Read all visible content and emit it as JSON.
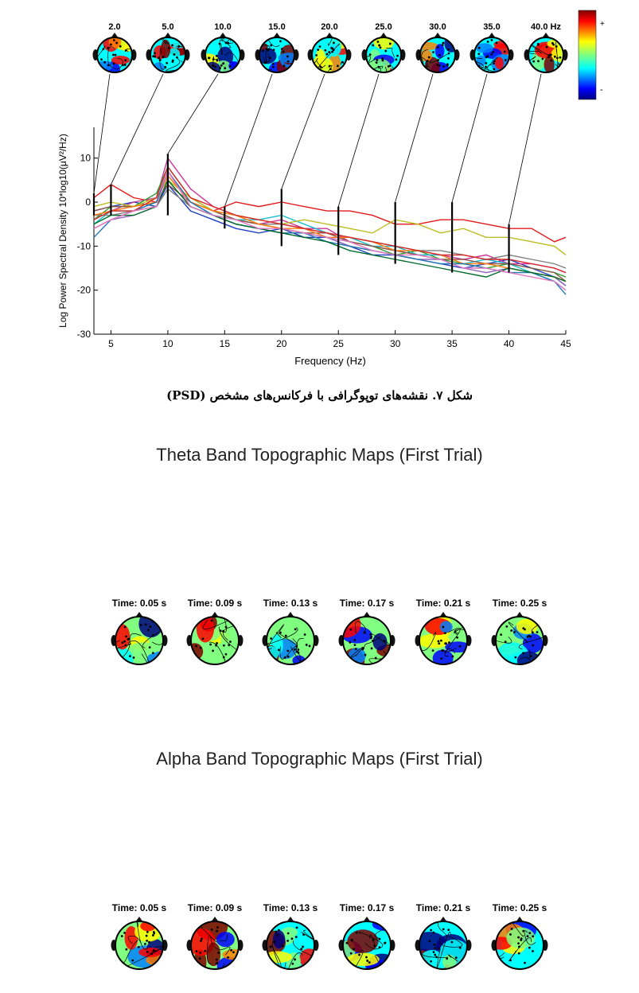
{
  "figure7": {
    "caption": "شکل ۷. نقشه‌های توپوگرافی با فرکانس‌های مشخص (PSD)",
    "topo_freq_labels": [
      "2.0",
      "5.0",
      "10.0",
      "15.0",
      "20.0",
      "25.0",
      "30.0",
      "35.0",
      "40.0 Hz"
    ],
    "colorbar": {
      "plus": "+",
      "minus": "-"
    },
    "chart_data": {
      "type": "line",
      "xlabel": "Frequency (Hz)",
      "ylabel": "Log Power Spectral Density 10*log10(μV²/Hz)",
      "xlim": [
        3.5,
        45
      ],
      "ylim": [
        -30,
        17
      ],
      "xticks": [
        5,
        10,
        15,
        20,
        25,
        30,
        35,
        40,
        45
      ],
      "yticks": [
        -30,
        -20,
        -10,
        0,
        10
      ],
      "x": [
        3.5,
        5,
        7,
        9,
        10,
        12,
        14,
        16,
        18,
        20,
        22,
        24,
        26,
        28,
        30,
        32,
        34,
        36,
        38,
        40,
        42,
        44,
        45
      ],
      "series": [
        {
          "color": "#e31a1c",
          "values": [
            1,
            4,
            1,
            0,
            7,
            0,
            -2,
            0,
            -1,
            0,
            -1,
            -2,
            -2,
            -3,
            -5,
            -5,
            -4,
            -4,
            -5,
            -6,
            -6,
            -9,
            -8
          ]
        },
        {
          "color": "#1f3fbf",
          "values": [
            -2,
            -1,
            0,
            -1,
            4,
            -2,
            -4,
            -6,
            -7,
            -6,
            -8,
            -8,
            -10,
            -12,
            -12,
            -13,
            -14,
            -15,
            -14,
            -13,
            -15,
            -17,
            -19
          ]
        },
        {
          "color": "#cc3399",
          "values": [
            -3,
            -2,
            0,
            1,
            10,
            3,
            -1,
            -3,
            -5,
            -4,
            -6,
            -6,
            -9,
            -10,
            -11,
            -12,
            -12,
            -13,
            -12,
            -14,
            -14,
            -15,
            -16
          ]
        },
        {
          "color": "#2ca02c",
          "values": [
            -4,
            -1,
            -1,
            2,
            8,
            1,
            -2,
            -4,
            -5,
            -6,
            -7,
            -8,
            -9,
            -10,
            -12,
            -11,
            -13,
            -14,
            -15,
            -14,
            -15,
            -16,
            -17
          ]
        },
        {
          "color": "#17becf",
          "values": [
            -5,
            -2,
            -2,
            0,
            6,
            0,
            -3,
            -4,
            -4,
            -3,
            -5,
            -7,
            -8,
            -10,
            -10,
            -12,
            -12,
            -14,
            -13,
            -14,
            -16,
            -18,
            -20
          ]
        },
        {
          "color": "#bcbd22",
          "values": [
            -1,
            0,
            -1,
            1,
            5,
            1,
            -2,
            -3,
            -4,
            -5,
            -4,
            -5,
            -6,
            -7,
            -4,
            -5,
            -7,
            -6,
            -8,
            -8,
            -9,
            -10,
            -12
          ]
        },
        {
          "color": "#7f7f7f",
          "values": [
            -3,
            -3,
            -2,
            -1,
            3,
            -1,
            -3,
            -4,
            -5,
            -5,
            -6,
            -7,
            -8,
            -9,
            -10,
            -11,
            -11,
            -12,
            -13,
            -12,
            -13,
            -14,
            -15
          ]
        },
        {
          "color": "#9467bd",
          "values": [
            -6,
            -4,
            -3,
            -1,
            5,
            -1,
            -3,
            -5,
            -6,
            -7,
            -7,
            -8,
            -10,
            -11,
            -12,
            -13,
            -13,
            -15,
            -16,
            -15,
            -16,
            -17,
            -19
          ]
        },
        {
          "color": "#8c564b",
          "values": [
            -2,
            -1,
            -1,
            0,
            4,
            0,
            -2,
            -4,
            -5,
            -6,
            -7,
            -7,
            -9,
            -10,
            -11,
            -12,
            -13,
            -13,
            -14,
            -14,
            -15,
            -16,
            -18
          ]
        },
        {
          "color": "#ff7f0e",
          "values": [
            -3,
            -2,
            -1,
            0,
            6,
            0,
            -2,
            -3,
            -5,
            -6,
            -6,
            -8,
            -8,
            -9,
            -11,
            -11,
            -12,
            -14,
            -14,
            -15,
            -16,
            -17,
            -18
          ]
        },
        {
          "color": "#1f77b4",
          "values": [
            -8,
            -4,
            -2,
            0,
            7,
            0,
            -3,
            -5,
            -6,
            -7,
            -7,
            -9,
            -10,
            -11,
            -12,
            -13,
            -14,
            -14,
            -15,
            -16,
            -16,
            -18,
            -21
          ]
        },
        {
          "color": "#d62728",
          "values": [
            -4,
            -2,
            -2,
            1,
            8,
            1,
            -1,
            -3,
            -4,
            -5,
            -6,
            -7,
            -8,
            -9,
            -10,
            -11,
            -12,
            -12,
            -13,
            -13,
            -14,
            -15,
            -16
          ]
        },
        {
          "color": "#006d2c",
          "values": [
            -5,
            -3,
            -3,
            -1,
            5,
            -1,
            -3,
            -5,
            -6,
            -7,
            -8,
            -9,
            -11,
            -12,
            -13,
            -14,
            -15,
            -16,
            -17,
            -15,
            -16,
            -17,
            -18
          ]
        },
        {
          "color": "#e377c2",
          "values": [
            -6,
            -4,
            -2,
            -1,
            7,
            -1,
            -3,
            -4,
            -6,
            -6,
            -7,
            -8,
            -9,
            -11,
            -12,
            -12,
            -13,
            -15,
            -15,
            -16,
            -17,
            -18,
            -20
          ]
        }
      ],
      "dashed_rgb": [
        3.5,
        5.0,
        10.0,
        15.0,
        20.0,
        25.0,
        30.0,
        35.0,
        40.0
      ]
    }
  },
  "theta": {
    "title": "Theta Band Topographic Maps (First Trial)",
    "times": [
      "Time: 0.05 s",
      "Time: 0.09 s",
      "Time: 0.13 s",
      "Time: 0.17 s",
      "Time: 0.21 s",
      "Time: 0.25 s"
    ]
  },
  "alpha": {
    "title": "Alpha Band Topographic Maps (First Trial)",
    "times": [
      "Time: 0.05 s",
      "Time: 0.09 s",
      "Time: 0.13 s",
      "Time: 0.17 s",
      "Time: 0.21 s",
      "Time: 0.25 s"
    ]
  }
}
